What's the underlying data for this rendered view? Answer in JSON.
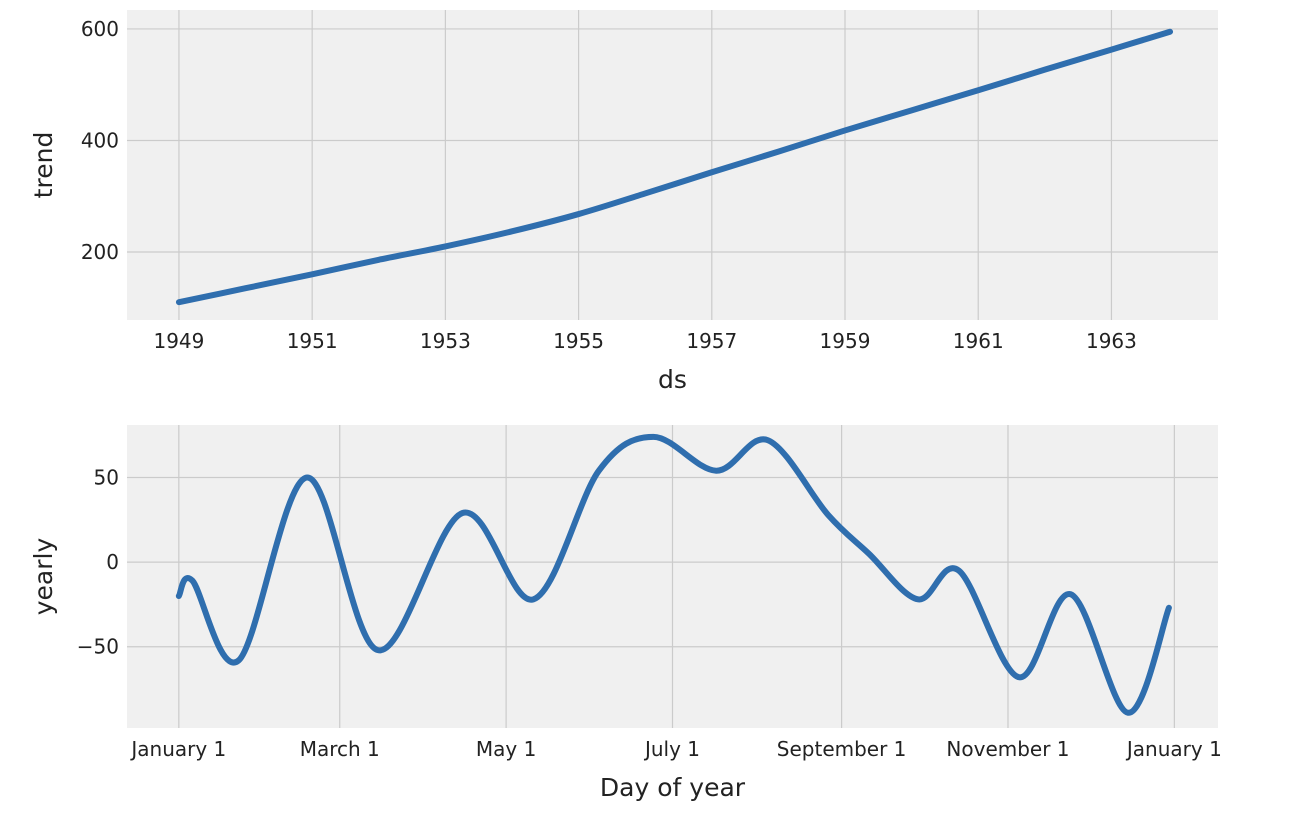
{
  "chart_data": [
    {
      "type": "line",
      "x_label": "ds",
      "y_label": "trend",
      "x": [
        1949,
        1950,
        1951,
        1952,
        1953,
        1954,
        1955,
        1956,
        1957,
        1958,
        1959,
        1960,
        1961,
        1962,
        1963,
        1963.88
      ],
      "series": [
        {
          "name": "trend",
          "color": "#2f6eae",
          "values": [
            110,
            135,
            160,
            186,
            210,
            237,
            268,
            305,
            343,
            380,
            418,
            454,
            490,
            527,
            563,
            595
          ]
        }
      ],
      "xlim": [
        1948.22,
        1964.6
      ],
      "ylim": [
        78,
        634
      ],
      "xticks": [
        1949,
        1951,
        1953,
        1955,
        1957,
        1959,
        1961,
        1963
      ],
      "yticks": [
        200,
        400,
        600
      ],
      "grid": true
    },
    {
      "type": "line",
      "x_label": "Day of year",
      "y_label": "yearly",
      "x": [
        0,
        5,
        22,
        47,
        73,
        104,
        130,
        154,
        174,
        197,
        216,
        238,
        253,
        271,
        286,
        308,
        327,
        348,
        363
      ],
      "series": [
        {
          "name": "yearly",
          "color": "#2f6eae",
          "values": [
            -20,
            -11,
            -58,
            50,
            -52,
            29,
            -22,
            54,
            74,
            54,
            72,
            28,
            5,
            -22,
            -5,
            -68,
            -19,
            -89,
            -27
          ]
        }
      ],
      "xlim": [
        -19,
        381
      ],
      "ylim": [
        -98,
        81
      ],
      "xticks": [
        {
          "value": 0,
          "label": "January 1"
        },
        {
          "value": 59,
          "label": "March 1"
        },
        {
          "value": 120,
          "label": "May 1"
        },
        {
          "value": 181,
          "label": "July 1"
        },
        {
          "value": 243,
          "label": "September 1"
        },
        {
          "value": 304,
          "label": "November 1"
        },
        {
          "value": 365,
          "label": "January 1"
        }
      ],
      "yticks": [
        {
          "value": -50,
          "label": "−50"
        },
        0,
        50
      ],
      "grid": true
    }
  ]
}
